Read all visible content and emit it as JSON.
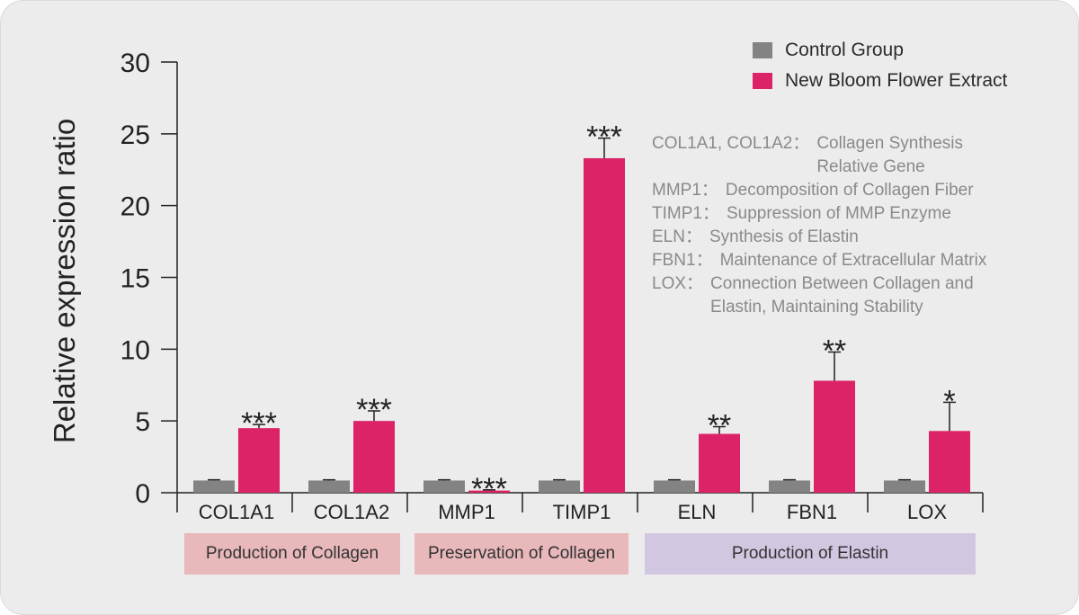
{
  "chart_data": {
    "type": "bar",
    "ylabel": "Relative expression ratio",
    "ylim": [
      0,
      30
    ],
    "yticks": [
      0,
      5,
      10,
      15,
      20,
      25,
      30
    ],
    "categories": [
      "COL1A1",
      "COL1A2",
      "MMP1",
      "TIMP1",
      "ELN",
      "FBN1",
      "LOX"
    ],
    "series": [
      {
        "name": "Control Group",
        "color": "#838383",
        "values": [
          0.85,
          0.85,
          0.85,
          0.85,
          0.85,
          0.85,
          0.85
        ],
        "errors": [
          0.05,
          0.05,
          0.05,
          0.05,
          0.05,
          0.05,
          0.05
        ]
      },
      {
        "name": "New Bloom Flower Extract",
        "color": "#dc2367",
        "values": [
          4.5,
          5.0,
          0.15,
          23.3,
          4.1,
          7.8,
          4.3
        ],
        "errors": [
          0.25,
          0.7,
          0.05,
          1.4,
          0.5,
          2.0,
          2.0
        ]
      }
    ],
    "significance": [
      "***",
      "***",
      "***",
      "***",
      "**",
      "**",
      "*"
    ],
    "groups": [
      {
        "label": "Production of Collagen",
        "color": "#e8b8ba"
      },
      {
        "label": "Preservation of Collagen",
        "color": "#e8b8ba"
      },
      {
        "label": "Production of Elastin",
        "color": "#d2c7e1"
      }
    ]
  },
  "legend": [
    {
      "label": "Control Group",
      "color": "#838383"
    },
    {
      "label": "New Bloom Flower Extract",
      "color": "#dc2367"
    }
  ],
  "notes": [
    {
      "name": "COL1A1, COL1A2",
      "desc": "Collagen Synthesis Relative Gene"
    },
    {
      "name": "MMP1",
      "desc": "Decomposition of Collagen Fiber"
    },
    {
      "name": "TIMP1",
      "desc": "Suppression of MMP Enzyme"
    },
    {
      "name": "ELN",
      "desc": "Synthesis of Elastin"
    },
    {
      "name": "FBN1",
      "desc": "Maintenance of Extracellular Matrix"
    },
    {
      "name": "LOX",
      "desc": "Connection Between Collagen and Elastin, Maintaining Stability"
    }
  ],
  "separator": "："
}
